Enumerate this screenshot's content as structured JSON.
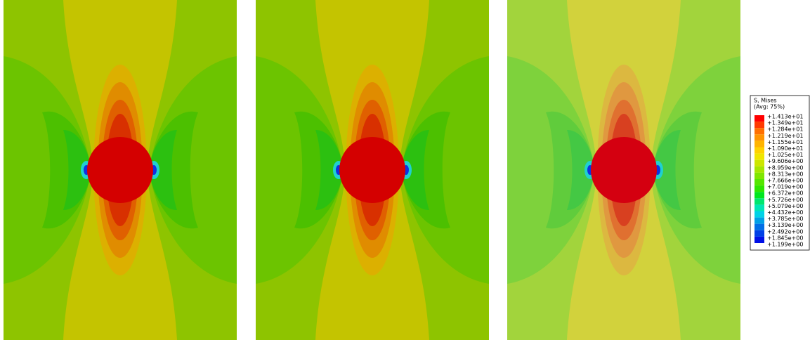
{
  "legend": {
    "title": "S, Mises",
    "subtitle": "(Avg: 75%)",
    "labels": [
      "+1.413e+01",
      "+1.349e+01",
      "+1.284e+01",
      "+1.219e+01",
      "+1.155e+01",
      "+1.090e+01",
      "+1.025e+01",
      "+9.606e+00",
      "+8.959e+00",
      "+8.313e+00",
      "+7.666e+00",
      "+7.019e+00",
      "+6.372e+00",
      "+5.726e+00",
      "+5.079e+00",
      "+4.432e+00",
      "+3.785e+00",
      "+3.139e+00",
      "+2.492e+00",
      "+1.845e+00",
      "+1.199e+00"
    ]
  }
}
